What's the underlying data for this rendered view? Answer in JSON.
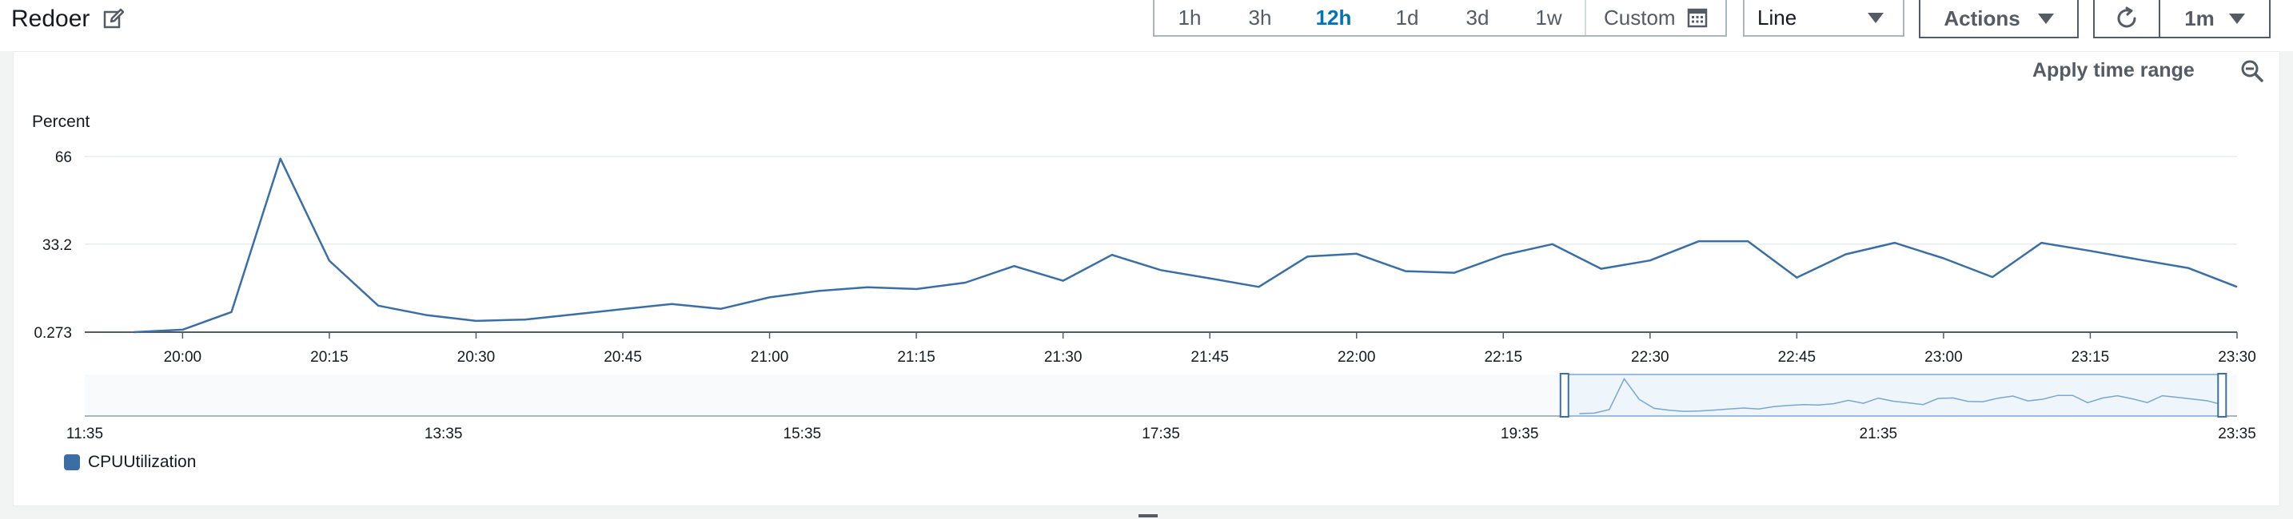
{
  "header": {
    "title": "Redoer",
    "icon": "edit-icon"
  },
  "time_range": {
    "options": [
      "1h",
      "3h",
      "12h",
      "1d",
      "3d",
      "1w"
    ],
    "selected": "12h",
    "custom_label": "Custom",
    "custom_icon": "calendar-icon"
  },
  "view_select": {
    "value": "Line"
  },
  "actions": {
    "label": "Actions"
  },
  "refresh": {
    "icon": "refresh-icon",
    "interval": "1m"
  },
  "panel": {
    "apply_label": "Apply time range",
    "zoom_icon": "zoom-out-icon"
  },
  "chart_data": {
    "type": "line",
    "ylabel": "Percent",
    "y_ticks": [
      0.273,
      33.2,
      66
    ],
    "x_ticks": [
      "20:00",
      "20:15",
      "20:30",
      "20:45",
      "21:00",
      "21:15",
      "21:30",
      "21:45",
      "22:00",
      "22:15",
      "22:30",
      "22:45",
      "23:00",
      "23:15",
      "23:30"
    ],
    "xlim": [
      "19:50",
      "23:30"
    ],
    "ylim": [
      0.273,
      66
    ],
    "grid": true,
    "series": [
      {
        "name": "CPUUtilization",
        "color": "#3a6ea5",
        "x": [
          "19:55",
          "20:00",
          "20:05",
          "20:10",
          "20:15",
          "20:20",
          "20:25",
          "20:30",
          "20:35",
          "20:40",
          "20:45",
          "20:50",
          "20:55",
          "21:00",
          "21:05",
          "21:10",
          "21:15",
          "21:20",
          "21:25",
          "21:30",
          "21:35",
          "21:40",
          "21:45",
          "21:50",
          "21:55",
          "22:00",
          "22:05",
          "22:10",
          "22:15",
          "22:20",
          "22:25",
          "22:30",
          "22:35",
          "22:40",
          "22:45",
          "22:50",
          "22:55",
          "23:00",
          "23:05",
          "23:10",
          "23:15",
          "23:20",
          "23:25",
          "23:30"
        ],
        "values": [
          0.273,
          1.2,
          7.8,
          65.2,
          27.0,
          10.2,
          6.6,
          4.5,
          5.0,
          6.9,
          8.9,
          10.8,
          9.0,
          13.3,
          15.7,
          17.1,
          16.4,
          18.8,
          25.0,
          19.5,
          29.2,
          23.5,
          20.4,
          17.2,
          28.6,
          29.6,
          23.1,
          22.5,
          29.1,
          33.2,
          24.0,
          27.1,
          34.3,
          34.3,
          20.7,
          29.4,
          33.7,
          27.9,
          20.9,
          33.7,
          30.7,
          27.4,
          24.3,
          17.2
        ]
      }
    ],
    "navigator": {
      "x_ticks": [
        "11:35",
        "13:35",
        "15:35",
        "17:35",
        "19:35",
        "21:35",
        "23:35"
      ],
      "xlim": [
        "11:35",
        "23:35"
      ],
      "selection": [
        "19:50",
        "23:30"
      ]
    },
    "legend": [
      "CPUUtilization"
    ],
    "legend_position": "bottom-left"
  }
}
